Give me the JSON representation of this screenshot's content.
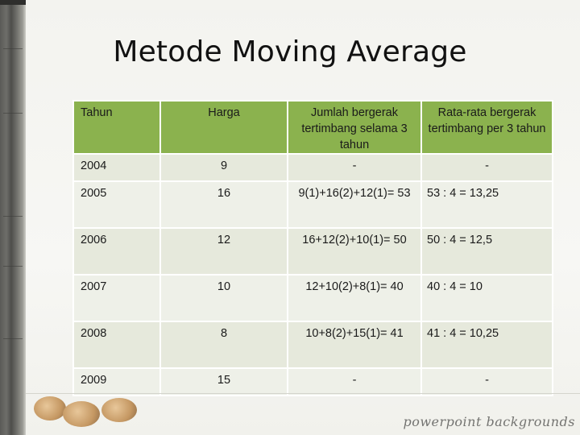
{
  "slide": {
    "title": "Metode Moving Average",
    "watermark": "powerpoint backgrounds"
  },
  "table": {
    "headers": [
      "Tahun",
      "Harga",
      "Jumlah bergerak tertimbang selama 3 tahun",
      "Rata-rata bergerak tertimbang per 3 tahun"
    ],
    "rows": [
      {
        "tahun": "2004",
        "harga": "9",
        "jumlah": "-",
        "rata": "-"
      },
      {
        "tahun": "2005",
        "harga": "16",
        "jumlah": "9(1)+16(2)+12(1)= 53",
        "rata": "53 : 4 = 13,25"
      },
      {
        "tahun": "2006",
        "harga": "12",
        "jumlah": "16+12(2)+10(1)= 50",
        "rata": "50 : 4 = 12,5"
      },
      {
        "tahun": "2007",
        "harga": "10",
        "jumlah": "12+10(2)+8(1)= 40",
        "rata": "40 : 4 = 10"
      },
      {
        "tahun": "2008",
        "harga": "8",
        "jumlah": "10+8(2)+15(1)= 41",
        "rata": "41 : 4 = 10,25"
      },
      {
        "tahun": "2009",
        "harga": "15",
        "jumlah": "-",
        "rata": "-"
      }
    ]
  },
  "colors": {
    "header_bg": "#8bb24e",
    "row_bg_a": "#e6e9dc",
    "row_bg_b": "#eef0e8"
  }
}
